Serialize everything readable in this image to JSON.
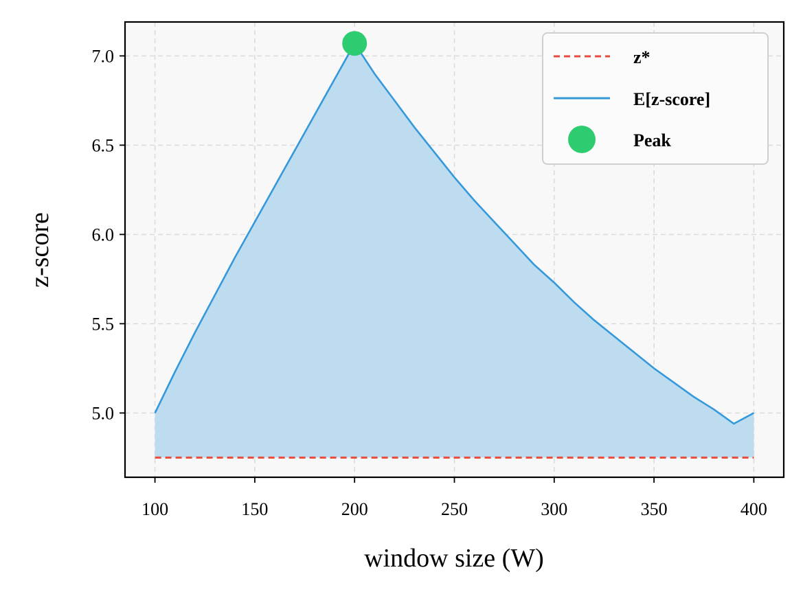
{
  "chart_data": {
    "type": "line",
    "xlabel": "window size (W)",
    "ylabel": "z-score",
    "xlim": [
      85,
      415
    ],
    "ylim": [
      4.64,
      7.19
    ],
    "xticks": [
      100,
      150,
      200,
      250,
      300,
      350,
      400
    ],
    "yticks": [
      5.0,
      5.5,
      6.0,
      6.5,
      7.0
    ],
    "grid": true,
    "legend_position": "top-right",
    "threshold": {
      "name": "z*",
      "value": 4.75,
      "x_range": [
        100,
        400
      ],
      "color": "#e74c3c",
      "style": "dashed"
    },
    "series": [
      {
        "name": "E[z-score]",
        "color": "#3498db",
        "fill_color": "#bddcf0",
        "x": [
          100,
          110,
          120,
          130,
          140,
          150,
          160,
          170,
          180,
          190,
          200,
          210,
          220,
          230,
          240,
          250,
          260,
          270,
          280,
          290,
          300,
          310,
          320,
          330,
          340,
          350,
          360,
          370,
          380,
          390,
          400
        ],
        "y": [
          5.0,
          5.23,
          5.45,
          5.66,
          5.87,
          6.07,
          6.27,
          6.47,
          6.67,
          6.87,
          7.07,
          6.9,
          6.75,
          6.6,
          6.46,
          6.32,
          6.19,
          6.07,
          5.95,
          5.83,
          5.73,
          5.62,
          5.52,
          5.43,
          5.34,
          5.25,
          5.17,
          5.09,
          5.02,
          4.94,
          5.0
        ]
      }
    ],
    "peak": {
      "name": "Peak",
      "x": 200,
      "y": 7.07,
      "color": "#2ecc71"
    }
  }
}
